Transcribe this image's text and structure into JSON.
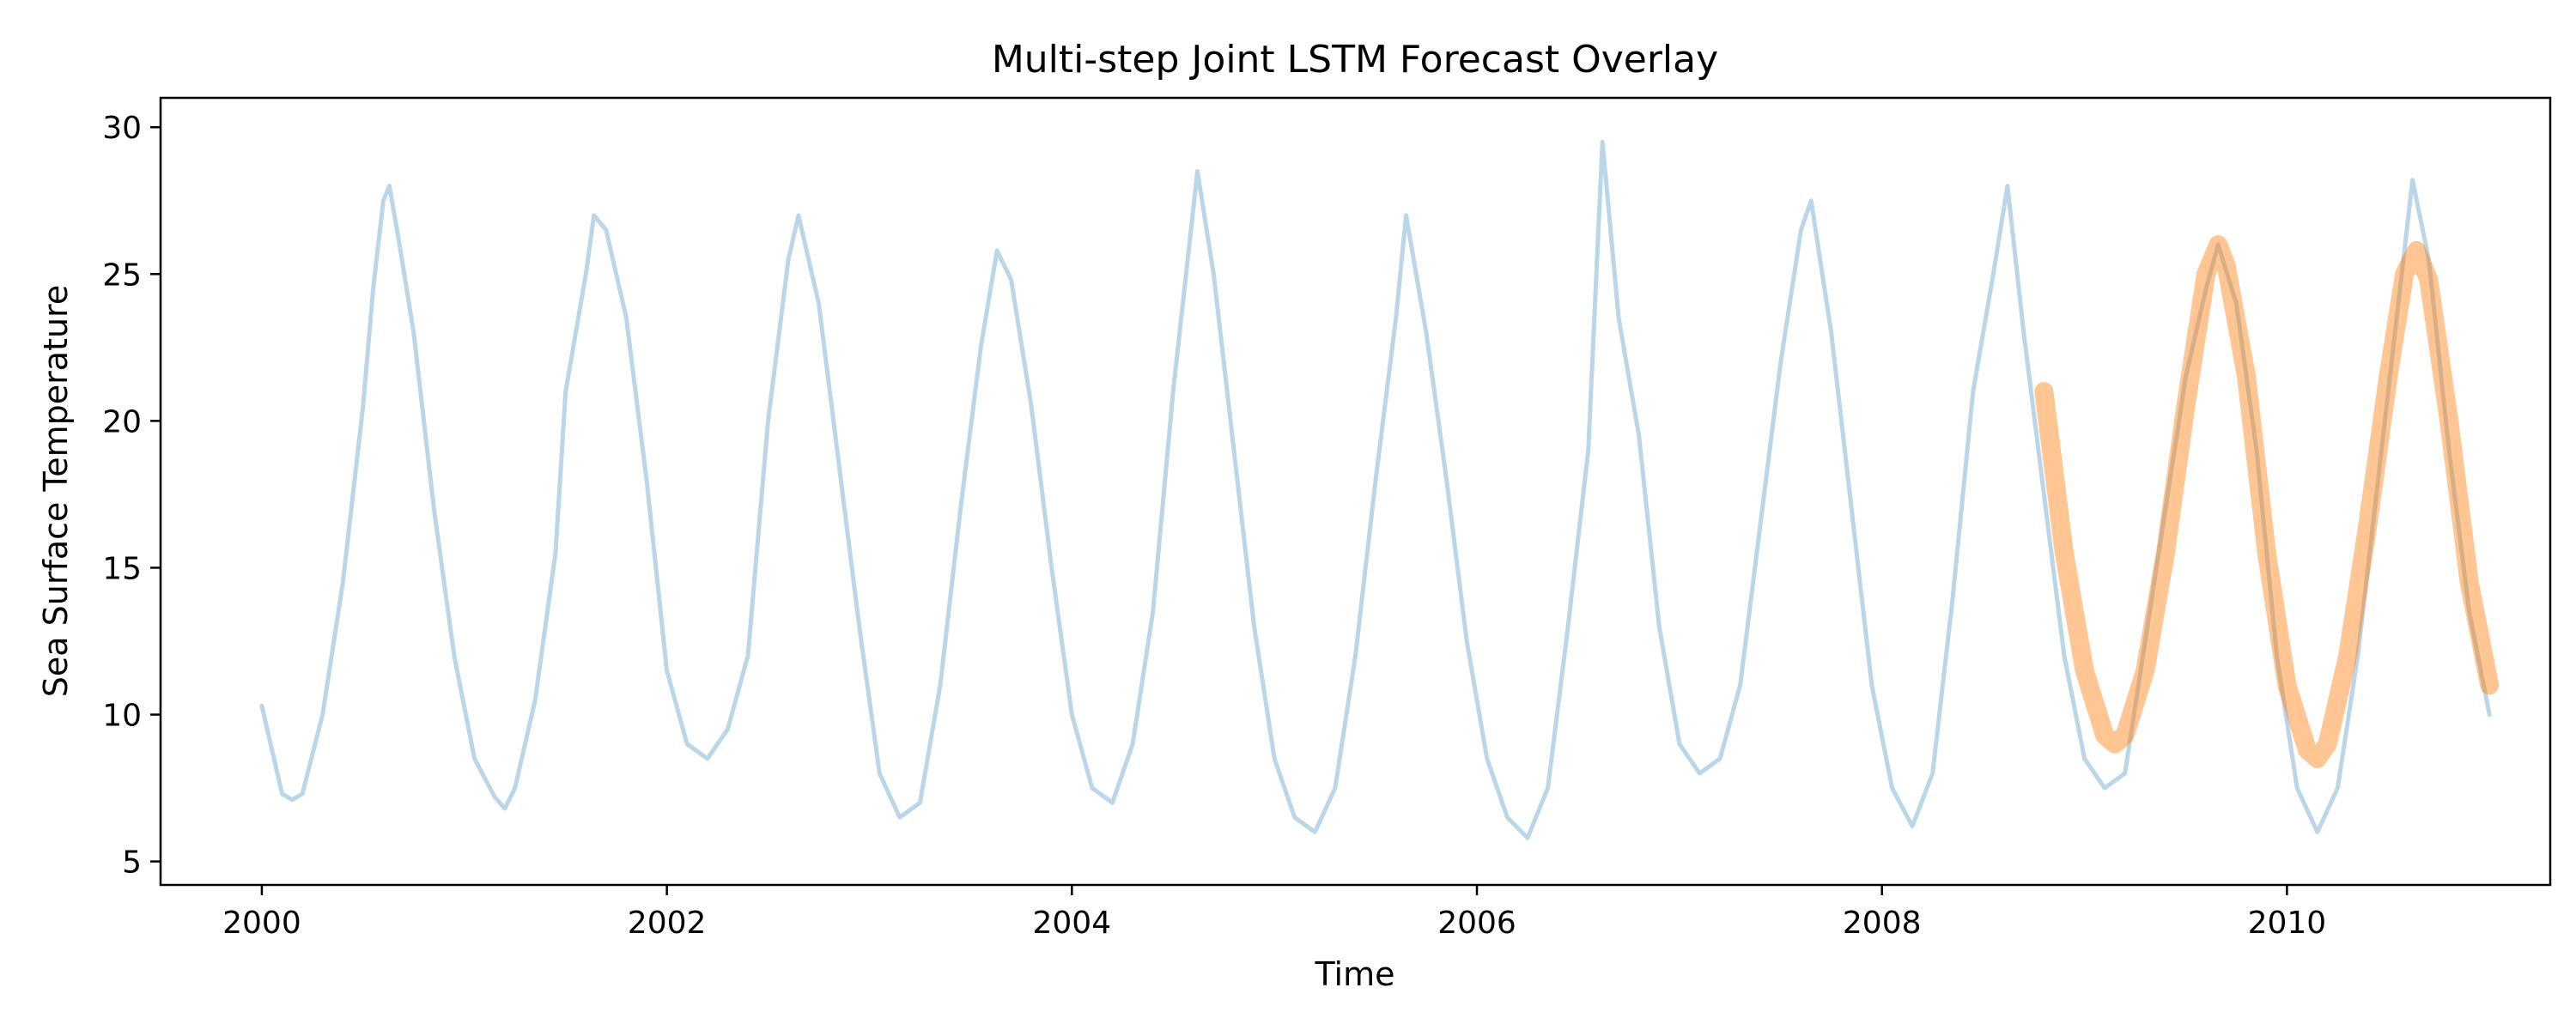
{
  "chart_data": {
    "type": "line",
    "title": "Multi-step Joint LSTM Forecast Overlay",
    "xlabel": "Time",
    "ylabel": "Sea Surface Temperature",
    "xlim": [
      1999.5,
      2011.3
    ],
    "ylim": [
      4.2,
      31.0
    ],
    "x_ticks": [
      2000,
      2002,
      2004,
      2006,
      2008,
      2010
    ],
    "x_tick_labels": [
      "2000",
      "2002",
      "2004",
      "2006",
      "2008",
      "2010"
    ],
    "y_ticks": [
      5,
      10,
      15,
      20,
      25,
      30
    ],
    "y_tick_labels": [
      "5",
      "10",
      "15",
      "20",
      "25",
      "30"
    ],
    "grid": false,
    "legend": "none",
    "series": [
      {
        "role": "observed",
        "color": "#1f77b4",
        "opacity": 0.3,
        "x": [
          2000.0,
          2000.05,
          2000.1,
          2000.15,
          2000.2,
          2000.3,
          2000.4,
          2000.5,
          2000.55,
          2000.6,
          2000.63,
          2000.68,
          2000.75,
          2000.85,
          2000.95,
          2001.05,
          2001.15,
          2001.2,
          2001.25,
          2001.35,
          2001.45,
          2001.5,
          2001.6,
          2001.64,
          2001.7,
          2001.8,
          2001.9,
          2002.0,
          2002.1,
          2002.2,
          2002.3,
          2002.4,
          2002.5,
          2002.6,
          2002.65,
          2002.75,
          2002.85,
          2002.95,
          2003.05,
          2003.15,
          2003.25,
          2003.35,
          2003.45,
          2003.55,
          2003.63,
          2003.7,
          2003.8,
          2003.9,
          2004.0,
          2004.1,
          2004.2,
          2004.3,
          2004.4,
          2004.5,
          2004.58,
          2004.62,
          2004.7,
          2004.8,
          2004.9,
          2005.0,
          2005.1,
          2005.2,
          2005.3,
          2005.4,
          2005.5,
          2005.6,
          2005.65,
          2005.75,
          2005.85,
          2005.95,
          2006.05,
          2006.15,
          2006.25,
          2006.35,
          2006.45,
          2006.55,
          2006.62,
          2006.7,
          2006.8,
          2006.9,
          2007.0,
          2007.1,
          2007.2,
          2007.3,
          2007.4,
          2007.5,
          2007.6,
          2007.65,
          2007.75,
          2007.85,
          2007.95,
          2008.05,
          2008.15,
          2008.25,
          2008.35,
          2008.45,
          2008.55,
          2008.62,
          2008.7,
          2008.8,
          2008.9,
          2009.0,
          2009.1,
          2009.2,
          2009.3,
          2009.4,
          2009.5,
          2009.6,
          2009.66,
          2009.75,
          2009.85,
          2009.95,
          2010.05,
          2010.15,
          2010.25,
          2010.35,
          2010.45,
          2010.55,
          2010.62,
          2010.7,
          2010.8,
          2010.9,
          2011.0
        ],
        "y": [
          10.3,
          8.8,
          7.3,
          7.1,
          7.3,
          10.0,
          14.5,
          20.5,
          24.5,
          27.5,
          28.0,
          26.0,
          23.0,
          17.0,
          12.0,
          8.5,
          7.2,
          6.8,
          7.5,
          10.5,
          15.5,
          21.0,
          25.0,
          27.0,
          26.5,
          23.5,
          18.0,
          11.5,
          9.0,
          8.5,
          9.5,
          12.0,
          20.0,
          25.5,
          27.0,
          24.0,
          18.5,
          13.0,
          8.0,
          6.5,
          7.0,
          11.0,
          17.0,
          22.5,
          25.8,
          24.8,
          20.5,
          15.0,
          10.0,
          7.5,
          7.0,
          9.0,
          13.5,
          21.0,
          26.0,
          28.5,
          25.0,
          19.0,
          13.0,
          8.5,
          6.5,
          6.0,
          7.5,
          12.0,
          18.0,
          23.5,
          27.0,
          23.0,
          18.0,
          12.5,
          8.5,
          6.5,
          5.8,
          7.5,
          13.0,
          19.0,
          29.5,
          23.5,
          19.5,
          13.0,
          9.0,
          8.0,
          8.5,
          11.0,
          16.5,
          22.0,
          26.5,
          27.5,
          23.0,
          17.0,
          11.0,
          7.5,
          6.2,
          8.0,
          14.0,
          21.0,
          25.0,
          28.0,
          23.0,
          17.5,
          12.0,
          8.5,
          7.5,
          8.0,
          12.5,
          17.0,
          21.5,
          24.5,
          26.0,
          24.0,
          19.0,
          12.0,
          7.5,
          6.0,
          7.5,
          12.0,
          18.0,
          24.0,
          28.2,
          25.5,
          19.0,
          13.5,
          10.0
        ]
      },
      {
        "role": "forecast",
        "color": "#ff7f0e",
        "opacity": 0.45,
        "x": [
          2008.8,
          2008.9,
          2009.0,
          2009.1,
          2009.15,
          2009.2,
          2009.3,
          2009.4,
          2009.5,
          2009.6,
          2009.66,
          2009.7,
          2009.8,
          2009.9,
          2010.0,
          2010.1,
          2010.15,
          2010.2,
          2010.3,
          2010.4,
          2010.5,
          2010.58,
          2010.64,
          2010.7,
          2010.8,
          2010.9,
          2011.0
        ],
        "y": [
          21.0,
          15.5,
          11.5,
          9.3,
          9.0,
          9.3,
          11.5,
          15.5,
          20.5,
          25.0,
          26.0,
          25.3,
          21.5,
          15.5,
          11.0,
          8.8,
          8.5,
          9.0,
          12.0,
          16.5,
          21.5,
          25.0,
          25.8,
          24.8,
          20.0,
          14.5,
          11.0
        ]
      }
    ]
  }
}
